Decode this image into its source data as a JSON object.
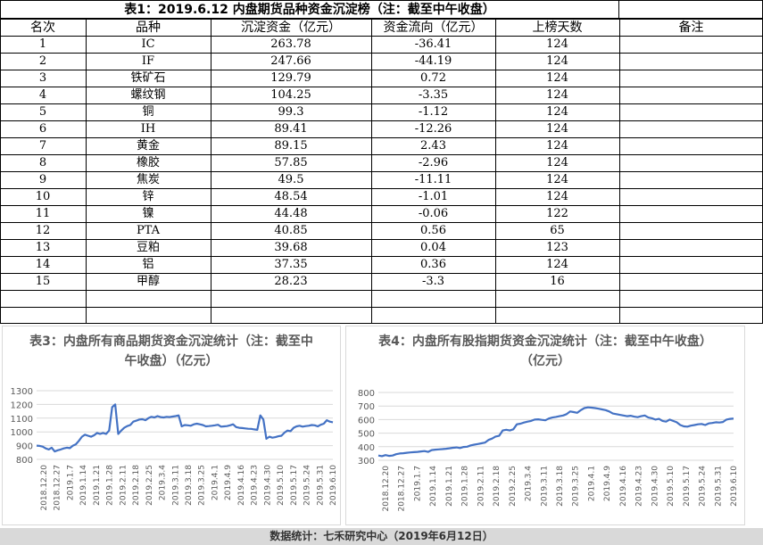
{
  "table": {
    "title": "表1：2019.6.12 内盘期货品种资金沉淀榜（注：截至中午收盘）",
    "headers": [
      "名次",
      "品种",
      "沉淀资金（亿元）",
      "资金流向（亿元）",
      "上榜天数",
      "备注"
    ],
    "rows": [
      [
        "1",
        "IC",
        "263.78",
        "-36.41",
        "124",
        ""
      ],
      [
        "2",
        "IF",
        "247.66",
        "-44.19",
        "124",
        ""
      ],
      [
        "3",
        "铁矿石",
        "129.79",
        "0.72",
        "124",
        ""
      ],
      [
        "4",
        "螺纹钢",
        "104.25",
        "-3.35",
        "124",
        ""
      ],
      [
        "5",
        "铜",
        "99.3",
        "-1.12",
        "124",
        ""
      ],
      [
        "6",
        "IH",
        "89.41",
        "-12.26",
        "124",
        ""
      ],
      [
        "7",
        "黄金",
        "89.15",
        "2.43",
        "124",
        ""
      ],
      [
        "8",
        "橡胶",
        "57.85",
        "-2.96",
        "124",
        ""
      ],
      [
        "9",
        "焦炭",
        "49.5",
        "-11.11",
        "124",
        ""
      ],
      [
        "10",
        "锌",
        "48.54",
        "-1.01",
        "124",
        ""
      ],
      [
        "11",
        "镍",
        "44.48",
        "-0.06",
        "122",
        ""
      ],
      [
        "12",
        "PTA",
        "40.85",
        "0.56",
        "65",
        ""
      ],
      [
        "13",
        "豆粕",
        "39.68",
        "0.04",
        "123",
        ""
      ],
      [
        "14",
        "铝",
        "37.35",
        "0.36",
        "124",
        ""
      ],
      [
        "15",
        "甲醇",
        "28.23",
        "-3.3",
        "16",
        ""
      ]
    ]
  },
  "chart_data": [
    {
      "type": "line",
      "title": "表3：内盘所有商品期货资金沉淀统计（注：截至中午收盘）（亿元）",
      "xlabel": "",
      "ylabel": "",
      "ylim": [
        800,
        1300
      ],
      "yticks": [
        800,
        900,
        1000,
        1100,
        1200,
        1300
      ],
      "xtick_labels": [
        "2018.12.20",
        "2018.12.27",
        "2019.1.7",
        "2019.1.14",
        "2019.1.21",
        "2019.1.28",
        "2019.2.11",
        "2019.2.18",
        "2019.2.25",
        "2019.3.4",
        "2019.3.11",
        "2019.3.18",
        "2019.3.25",
        "2019.4.1",
        "2019.4.9",
        "2019.4.16",
        "2019.4.23",
        "2019.4.30",
        "2019.5.10",
        "2019.5.17",
        "2019.5.24",
        "2019.5.31",
        "2019.6.10"
      ],
      "color": "#4472c4",
      "grid": true,
      "series": [
        {
          "values": [
            900,
            898,
            893,
            880,
            872,
            885,
            858,
            866,
            872,
            880,
            885,
            882,
            900,
            910,
            935,
            965,
            980,
            972,
            965,
            975,
            992,
            985,
            992,
            985,
            1010,
            1180,
            1200,
            985,
            1010,
            1030,
            1042,
            1050,
            1075,
            1082,
            1090,
            1092,
            1085,
            1100,
            1110,
            1105,
            1115,
            1108,
            1105,
            1110,
            1108,
            1112,
            1115,
            1120,
            1040,
            1050,
            1048,
            1045,
            1055,
            1060,
            1055,
            1050,
            1040,
            1042,
            1045,
            1048,
            1052,
            1038,
            1040,
            1042,
            1048,
            1055,
            1035,
            1030,
            1028,
            1025,
            1023,
            1022,
            1018,
            1015,
            1120,
            1090,
            950,
            965,
            958,
            962,
            968,
            972,
            995,
            1010,
            1005,
            1030,
            1040,
            1045,
            1038,
            1042,
            1045,
            1050,
            1048,
            1040,
            1052,
            1060,
            1085,
            1075,
            1070
          ]
        }
      ]
    },
    {
      "type": "line",
      "title": "表4：内盘所有股指期货资金沉淀统计（注：截至中午收盘）（亿元）",
      "xlabel": "",
      "ylabel": "",
      "ylim": [
        300,
        800
      ],
      "yticks": [
        300,
        400,
        500,
        600,
        700,
        800
      ],
      "xtick_labels": [
        "2018.12.20",
        "2018.12.27",
        "2019.1.7",
        "2019.1.14",
        "2019.1.21",
        "2019.1.28",
        "2019.2.11",
        "2019.2.18",
        "2019.2.25",
        "2019.3.4",
        "2019.3.11",
        "2019.3.18",
        "2019.3.25",
        "2019.4.1",
        "2019.4.9",
        "2019.4.16",
        "2019.4.23",
        "2019.4.30",
        "2019.5.10",
        "2019.5.17",
        "2019.5.24",
        "2019.5.31",
        "2019.6.10"
      ],
      "color": "#4472c4",
      "grid": true,
      "series": [
        {
          "values": [
            335,
            330,
            338,
            332,
            335,
            345,
            350,
            352,
            355,
            358,
            360,
            362,
            365,
            368,
            362,
            375,
            378,
            380,
            382,
            385,
            388,
            392,
            395,
            390,
            398,
            400,
            410,
            415,
            420,
            425,
            430,
            450,
            460,
            475,
            480,
            520,
            525,
            520,
            528,
            565,
            570,
            578,
            585,
            590,
            600,
            602,
            598,
            595,
            608,
            615,
            620,
            625,
            630,
            640,
            660,
            655,
            650,
            670,
            685,
            690,
            688,
            685,
            680,
            675,
            670,
            660,
            645,
            640,
            635,
            630,
            625,
            628,
            622,
            618,
            625,
            630,
            615,
            610,
            600,
            605,
            590,
            585,
            600,
            590,
            580,
            560,
            550,
            548,
            555,
            560,
            565,
            568,
            560,
            572,
            575,
            580,
            578,
            582,
            600,
            605,
            608
          ]
        }
      ]
    }
  ],
  "footer": "数据统计：七禾研究中心（2019年6月12日）"
}
